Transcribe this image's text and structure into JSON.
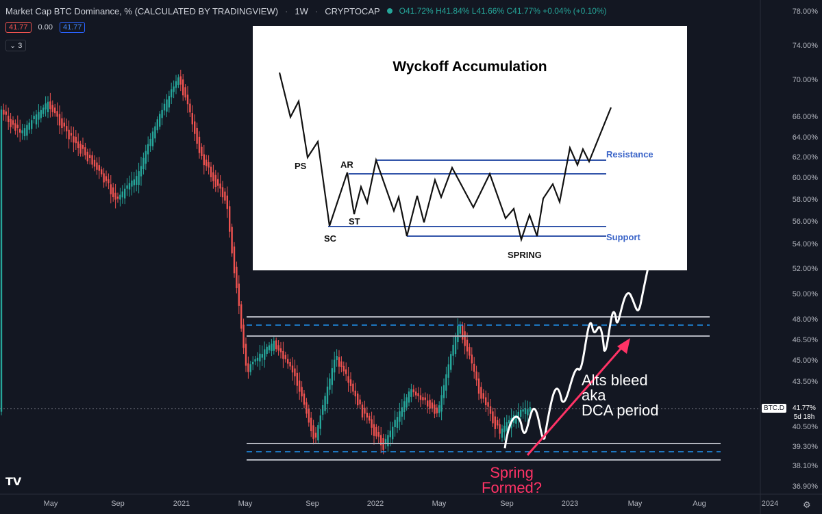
{
  "header": {
    "title": "Market Cap BTC Dominance, % (CALCULATED BY TRADINGVIEW)",
    "interval": "1W",
    "exchange": "CRYPTOCAP",
    "ohlc": {
      "o": "O41.72%",
      "h": "H41.84%",
      "l": "L41.66%",
      "c": "C41.77%",
      "change": "+0.04% (+0.10%)"
    }
  },
  "values_row": {
    "v1": "41.77",
    "v2": "0.00",
    "v3": "41.77"
  },
  "collapse_label": "3",
  "price_tag": {
    "symbol": "BTC.D",
    "price": "41.77%",
    "countdown": "5d 18h"
  },
  "colors": {
    "up": "#26a69a",
    "down": "#ef5350",
    "bg": "#131722",
    "level_blue": "#2196f3",
    "level_grey": "#b2b5be",
    "arrow": "#ff3366"
  },
  "y_axis_ticks": [
    "78.00%",
    "74.00%",
    "70.00%",
    "66.00%",
    "64.00%",
    "62.00%",
    "60.00%",
    "58.00%",
    "56.00%",
    "54.00%",
    "52.00%",
    "50.00%",
    "48.00%",
    "46.50%",
    "45.00%",
    "43.50%",
    "41.77%",
    "40.50%",
    "39.30%",
    "38.10%",
    "36.90%"
  ],
  "x_axis_ticks": [
    "May",
    "Sep",
    "2021",
    "May",
    "Sep",
    "2022",
    "May",
    "Sep",
    "2023",
    "May",
    "Aug",
    "2024"
  ],
  "inset": {
    "title": "Wyckoff Accumulation",
    "labels": {
      "ps": "PS",
      "ar": "AR",
      "st": "ST",
      "sc": "SC",
      "spring": "SPRING"
    },
    "resistance": "Resistance",
    "support": "Support"
  },
  "annotations": {
    "alts_line1": "Alts bleed",
    "alts_line2": "aka",
    "alts_line3": "DCA period",
    "spring_line1": "Spring",
    "spring_line2": "Formed?"
  },
  "icons": {
    "logo": "tradingview-logo-icon",
    "settings": "gear-icon",
    "status": "market-open-dot-icon"
  }
}
